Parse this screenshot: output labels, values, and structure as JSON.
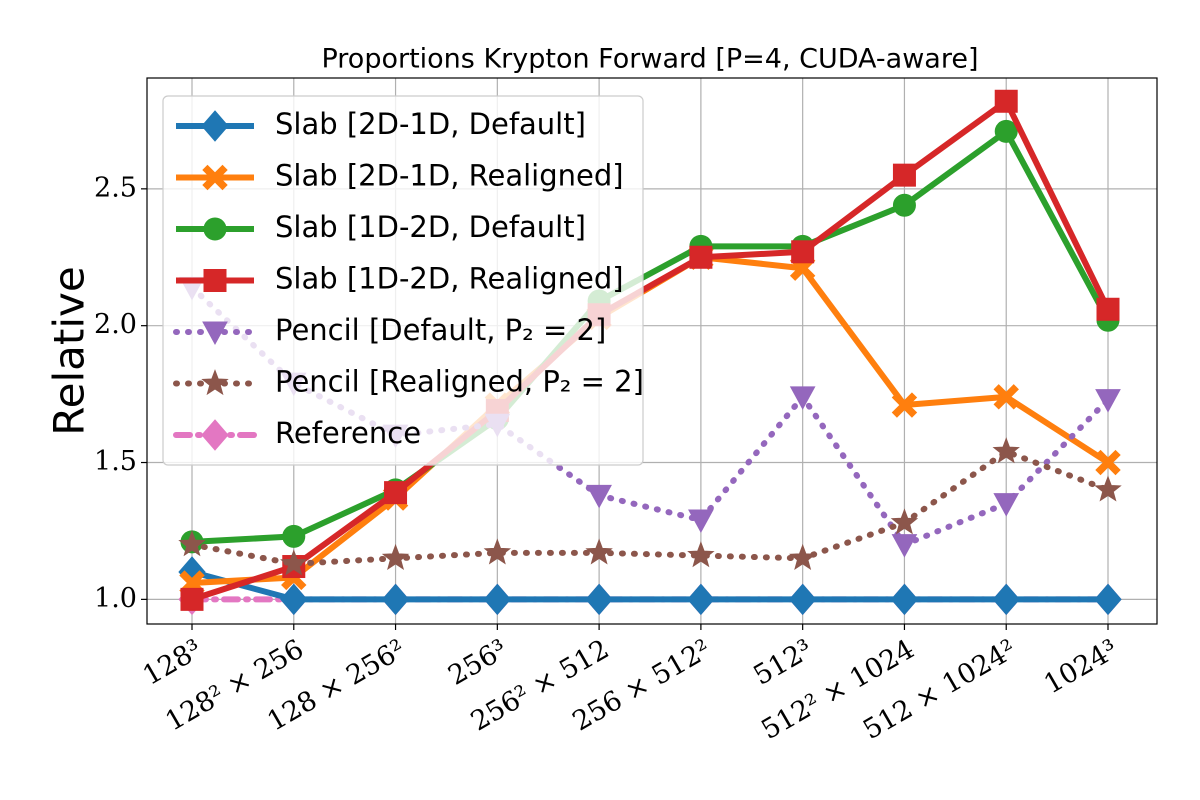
{
  "chart_data": {
    "type": "line",
    "title": "Proportions Krypton Forward [P=4, CUDA-aware]",
    "ylabel": "Relative",
    "categories": [
      "128³",
      "128² × 256",
      "128 × 256²",
      "256³",
      "256² × 512",
      "256 × 512²",
      "512³",
      "512² × 1024",
      "512 × 1024²",
      "1024³"
    ],
    "ylim": [
      0.91,
      2.905
    ],
    "yticks": [
      {
        "value": 1,
        "label": "1.0"
      },
      1.5,
      {
        "value": 2,
        "label": "2.0"
      },
      2.5
    ],
    "grid": true,
    "legend": "upper left",
    "series": [
      {
        "name": "Slab [2D-1D, Default]",
        "color": "#1f77b4",
        "marker": "D",
        "linestyle": "solid",
        "values": [
          1.1,
          1.0,
          1.0,
          1.0,
          1.0,
          1.0,
          1.0,
          1.0,
          1.0,
          1.0
        ]
      },
      {
        "name": "Slab [2D-1D, Realigned]",
        "color": "#ff7f0e",
        "marker": "X",
        "linestyle": "solid",
        "values": [
          1.06,
          1.08,
          1.37,
          1.71,
          2.03,
          2.25,
          2.21,
          1.71,
          1.74,
          1.5
        ]
      },
      {
        "name": "Slab [1D-2D, Default]",
        "color": "#2ca02c",
        "marker": "o",
        "linestyle": "solid",
        "values": [
          1.21,
          1.23,
          1.4,
          1.66,
          2.09,
          2.29,
          2.29,
          2.44,
          2.71,
          2.02
        ]
      },
      {
        "name": "Slab [1D-2D, Realigned]",
        "color": "#d62728",
        "marker": "s",
        "linestyle": "solid",
        "values": [
          1.0,
          1.12,
          1.39,
          1.69,
          2.04,
          2.25,
          2.27,
          2.55,
          2.82,
          2.06
        ]
      },
      {
        "name": "Pencil [Default, P₂ = 2]",
        "color": "#9467bd",
        "marker": "v",
        "linestyle": "dotted",
        "values": [
          2.14,
          1.79,
          1.6,
          1.64,
          1.38,
          1.29,
          1.74,
          1.2,
          1.35,
          1.73
        ]
      },
      {
        "name": "Pencil [Realigned, P₂ = 2]",
        "color": "#8c564b",
        "marker": "*",
        "linestyle": "dotted",
        "values": [
          1.2,
          1.13,
          1.15,
          1.17,
          1.17,
          1.16,
          1.15,
          1.28,
          1.54,
          1.4
        ]
      },
      {
        "name": "Reference",
        "color": "#e377c2",
        "marker": "D",
        "linestyle": "dashdot",
        "values": [
          1.0,
          1.0,
          1.0,
          1.0,
          1.0,
          1.0,
          1.0,
          1.0,
          1.0,
          1.0
        ]
      }
    ]
  }
}
